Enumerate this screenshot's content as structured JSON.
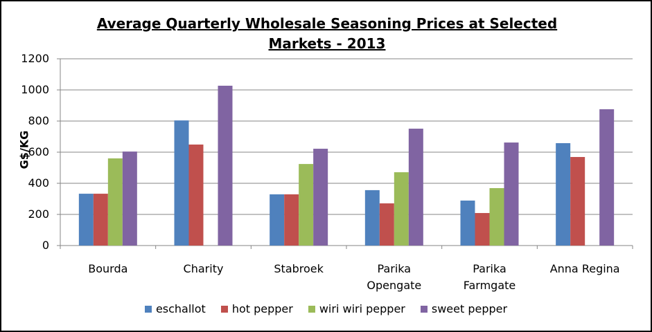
{
  "chart_data": {
    "type": "bar",
    "title": "Average Quarterly Wholesale Seasoning Prices at Selected Markets - 2013",
    "y_label": "G$/KG",
    "categories": [
      "Bourda",
      "Charity",
      "Stabroek",
      "Parika Opengate",
      "Parika Farmgate",
      "Anna Regina"
    ],
    "series": [
      {
        "name": "eschallot",
        "color": "#4f81bd",
        "values": [
          333,
          804,
          329,
          356,
          289,
          658
        ]
      },
      {
        "name": "hot pepper",
        "color": "#c0504d",
        "values": [
          333,
          649,
          329,
          271,
          209,
          569
        ]
      },
      {
        "name": "wiri wiri pepper",
        "color": "#9bbb59",
        "values": [
          560,
          null,
          524,
          471,
          369,
          null
        ]
      },
      {
        "name": "sweet pepper",
        "color": "#8064a2",
        "values": [
          604,
          1027,
          622,
          751,
          662,
          876
        ]
      }
    ],
    "ylim": [
      0,
      1200
    ],
    "yticks": [
      0,
      200,
      400,
      600,
      800,
      1000,
      1200
    ],
    "grid": true,
    "legend": "bottom"
  }
}
